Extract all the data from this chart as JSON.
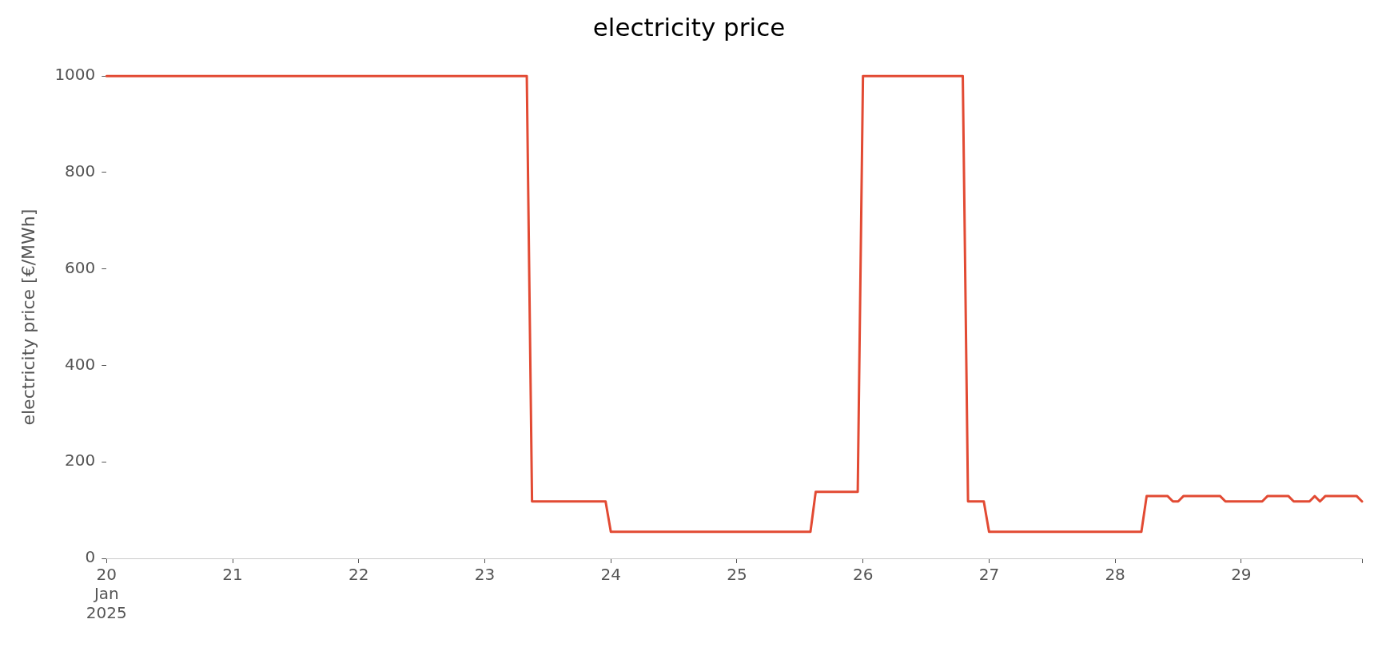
{
  "chart_data": {
    "type": "line",
    "title": "electricity price",
    "ylabel": "electricity price [€/MWh]",
    "series": [
      {
        "color": "#e24a33",
        "x": [
          "2025-01-20T00:00",
          "2025-01-23T08:00",
          "2025-01-23T09:00",
          "2025-01-23T23:00",
          "2025-01-24T00:00",
          "2025-01-25T14:00",
          "2025-01-25T15:00",
          "2025-01-25T23:00",
          "2025-01-26T00:00",
          "2025-01-26T19:00",
          "2025-01-26T20:00",
          "2025-01-26T23:00",
          "2025-01-27T00:00",
          "2025-01-28T05:00",
          "2025-01-28T06:00",
          "2025-01-28T10:00",
          "2025-01-28T11:00",
          "2025-01-28T12:00",
          "2025-01-28T13:00",
          "2025-01-28T20:00",
          "2025-01-28T21:00",
          "2025-01-29T04:00",
          "2025-01-29T05:00",
          "2025-01-29T09:00",
          "2025-01-29T10:00",
          "2025-01-29T13:00",
          "2025-01-29T14:00",
          "2025-01-29T15:00",
          "2025-01-29T16:00",
          "2025-01-29T22:00",
          "2025-01-29T23:00"
        ],
        "values": [
          1000,
          1000,
          118,
          118,
          55,
          55,
          138,
          138,
          1000,
          1000,
          118,
          118,
          55,
          55,
          129,
          129,
          118,
          118,
          129,
          129,
          118,
          118,
          129,
          129,
          118,
          118,
          129,
          118,
          129,
          129,
          118
        ]
      }
    ],
    "xlim": [
      "2025-01-20T00:00",
      "2025-01-29T23:00"
    ],
    "xticks": [
      {
        "value": "2025-01-20T00:00",
        "label": "20\nJan\n2025"
      },
      {
        "value": "2025-01-21T00:00",
        "label": "21"
      },
      {
        "value": "2025-01-22T00:00",
        "label": "22"
      },
      {
        "value": "2025-01-23T00:00",
        "label": "23"
      },
      {
        "value": "2025-01-24T00:00",
        "label": "24"
      },
      {
        "value": "2025-01-25T00:00",
        "label": "25"
      },
      {
        "value": "2025-01-26T00:00",
        "label": "26"
      },
      {
        "value": "2025-01-27T00:00",
        "label": "27"
      },
      {
        "value": "2025-01-28T00:00",
        "label": "28"
      },
      {
        "value": "2025-01-29T00:00",
        "label": "29"
      },
      {
        "value": "2025-01-29T23:00",
        "label": null
      }
    ],
    "ylim": [
      0,
      1000
    ],
    "yticks": [
      0,
      200,
      400,
      600,
      800,
      1000
    ],
    "grid": false,
    "legend": false,
    "marker": "none",
    "line_style": "solid"
  }
}
